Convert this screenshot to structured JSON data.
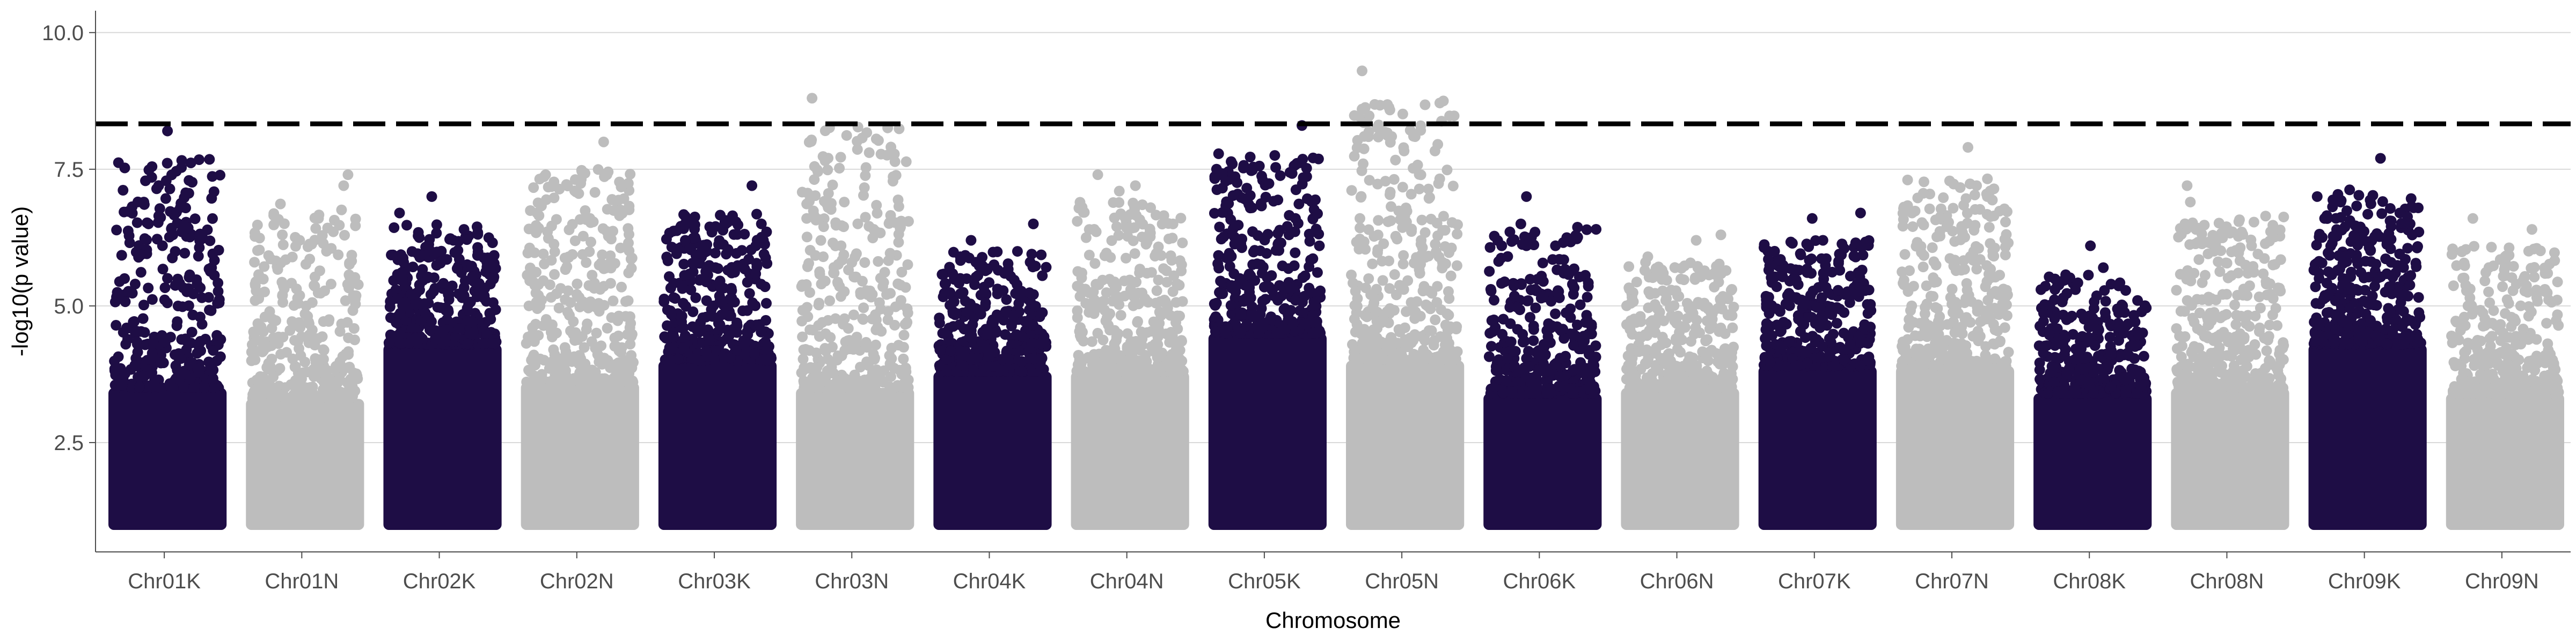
{
  "chart_data": {
    "type": "scatter",
    "subtype": "manhattan",
    "title": "",
    "xlabel": "Chromosome",
    "ylabel": "-log10(p value)",
    "ylim": [
      0.5,
      10.4
    ],
    "yticks": [
      2.5,
      5.0,
      7.5,
      10.0
    ],
    "ytick_labels": [
      "2.5",
      "5.0",
      "7.5",
      "10.0"
    ],
    "grid": "horizontal major lines only",
    "legend": "none",
    "threshold": {
      "y": 8.33,
      "style": "dashed",
      "color": "#000000"
    },
    "colors": {
      "K": "#1e0d45",
      "N": "#bdbdbd"
    },
    "categories": [
      "Chr01K",
      "Chr01N",
      "Chr02K",
      "Chr02N",
      "Chr03K",
      "Chr03N",
      "Chr04K",
      "Chr04N",
      "Chr05K",
      "Chr05N",
      "Chr06K",
      "Chr06N",
      "Chr07K",
      "Chr07N",
      "Chr08K",
      "Chr08N",
      "Chr09K",
      "Chr09N"
    ],
    "series": [
      {
        "chromosome": "Chr01K",
        "color_group": "K",
        "baseline_min": 1.0,
        "dense_top": 3.5,
        "max": 8.2,
        "peaks": [
          {
            "pos": 0.5,
            "y": 8.2
          },
          {
            "pos": 0.28,
            "y": 6.9
          },
          {
            "pos": 0.62,
            "y": 6.8
          },
          {
            "pos": 0.55,
            "y": 6.3
          },
          {
            "pos": 0.1,
            "y": 5.5
          }
        ]
      },
      {
        "chromosome": "Chr01N",
        "color_group": "N",
        "baseline_min": 1.0,
        "dense_top": 3.3,
        "max": 7.4,
        "peaks": [
          {
            "pos": 0.9,
            "y": 7.4
          },
          {
            "pos": 0.86,
            "y": 7.2
          },
          {
            "pos": 0.45,
            "y": 6.2
          },
          {
            "pos": 0.7,
            "y": 6.0
          }
        ]
      },
      {
        "chromosome": "Chr02K",
        "color_group": "K",
        "baseline_min": 1.0,
        "dense_top": 4.3,
        "max": 7.0,
        "peaks": [
          {
            "pos": 0.4,
            "y": 7.0
          },
          {
            "pos": 0.1,
            "y": 6.7
          },
          {
            "pos": 0.7,
            "y": 6.4
          },
          {
            "pos": 0.6,
            "y": 6.2
          }
        ]
      },
      {
        "chromosome": "Chr02N",
        "color_group": "N",
        "baseline_min": 1.0,
        "dense_top": 3.6,
        "max": 8.0,
        "peaks": [
          {
            "pos": 0.72,
            "y": 8.0
          },
          {
            "pos": 0.75,
            "y": 7.4
          },
          {
            "pos": 0.18,
            "y": 7.4
          },
          {
            "pos": 0.1,
            "y": 6.7
          }
        ]
      },
      {
        "chromosome": "Chr03K",
        "color_group": "K",
        "baseline_min": 1.0,
        "dense_top": 4.0,
        "max": 7.2,
        "peaks": [
          {
            "pos": 0.82,
            "y": 7.2
          },
          {
            "pos": 0.2,
            "y": 6.2
          },
          {
            "pos": 0.4,
            "y": 6.0
          }
        ]
      },
      {
        "chromosome": "Chr03N",
        "color_group": "N",
        "baseline_min": 1.0,
        "dense_top": 3.5,
        "max": 8.8,
        "peaks": [
          {
            "pos": 0.1,
            "y": 8.8
          },
          {
            "pos": 0.4,
            "y": 6.9
          },
          {
            "pos": 0.25,
            "y": 6.8
          },
          {
            "pos": 0.05,
            "y": 6.6
          }
        ]
      },
      {
        "chromosome": "Chr04K",
        "color_group": "K",
        "baseline_min": 1.0,
        "dense_top": 3.8,
        "max": 6.5,
        "peaks": [
          {
            "pos": 0.88,
            "y": 6.5
          },
          {
            "pos": 0.3,
            "y": 6.2
          },
          {
            "pos": 0.2,
            "y": 5.9
          },
          {
            "pos": 0.85,
            "y": 5.8
          }
        ]
      },
      {
        "chromosome": "Chr04N",
        "color_group": "N",
        "baseline_min": 1.0,
        "dense_top": 3.8,
        "max": 7.4,
        "peaks": [
          {
            "pos": 0.2,
            "y": 7.4
          },
          {
            "pos": 0.55,
            "y": 7.2
          },
          {
            "pos": 0.4,
            "y": 7.1
          },
          {
            "pos": 0.9,
            "y": 6.5
          }
        ]
      },
      {
        "chromosome": "Chr05K",
        "color_group": "K",
        "baseline_min": 1.0,
        "dense_top": 4.5,
        "max": 8.3,
        "peaks": [
          {
            "pos": 0.82,
            "y": 8.3
          },
          {
            "pos": 0.76,
            "y": 6.6
          },
          {
            "pos": 0.7,
            "y": 6.3
          },
          {
            "pos": 0.45,
            "y": 5.6
          }
        ]
      },
      {
        "chromosome": "Chr05N",
        "color_group": "N",
        "baseline_min": 1.0,
        "dense_top": 4.0,
        "max": 9.3,
        "peaks": [
          {
            "pos": 0.1,
            "y": 9.3
          },
          {
            "pos": 0.1,
            "y": 8.6
          },
          {
            "pos": 0.12,
            "y": 8.1
          },
          {
            "pos": 0.11,
            "y": 7.6
          },
          {
            "pos": 0.08,
            "y": 6.6
          },
          {
            "pos": 0.65,
            "y": 6.2
          }
        ]
      },
      {
        "chromosome": "Chr06K",
        "color_group": "K",
        "baseline_min": 1.0,
        "dense_top": 3.4,
        "max": 7.0,
        "peaks": [
          {
            "pos": 0.35,
            "y": 7.0
          },
          {
            "pos": 0.12,
            "y": 6.1
          },
          {
            "pos": 0.35,
            "y": 6.1
          },
          {
            "pos": 0.62,
            "y": 6.1
          }
        ]
      },
      {
        "chromosome": "Chr06N",
        "color_group": "N",
        "baseline_min": 1.0,
        "dense_top": 3.5,
        "max": 6.3,
        "peaks": [
          {
            "pos": 0.88,
            "y": 6.3
          },
          {
            "pos": 0.2,
            "y": 5.9
          },
          {
            "pos": 0.65,
            "y": 6.2
          }
        ]
      },
      {
        "chromosome": "Chr07K",
        "color_group": "K",
        "baseline_min": 1.0,
        "dense_top": 3.9,
        "max": 6.7,
        "peaks": [
          {
            "pos": 0.9,
            "y": 6.7
          },
          {
            "pos": 0.45,
            "y": 6.6
          },
          {
            "pos": 0.1,
            "y": 6.0
          },
          {
            "pos": 0.55,
            "y": 6.2
          }
        ]
      },
      {
        "chromosome": "Chr07N",
        "color_group": "N",
        "baseline_min": 1.0,
        "dense_top": 3.9,
        "max": 7.9,
        "peaks": [
          {
            "pos": 0.62,
            "y": 7.9
          },
          {
            "pos": 0.7,
            "y": 7.2
          },
          {
            "pos": 0.8,
            "y": 7.0
          },
          {
            "pos": 0.1,
            "y": 6.7
          }
        ]
      },
      {
        "chromosome": "Chr08K",
        "color_group": "K",
        "baseline_min": 1.0,
        "dense_top": 3.4,
        "max": 6.1,
        "peaks": [
          {
            "pos": 0.48,
            "y": 6.1
          },
          {
            "pos": 0.15,
            "y": 5.3
          },
          {
            "pos": 0.6,
            "y": 5.7
          }
        ]
      },
      {
        "chromosome": "Chr08N",
        "color_group": "N",
        "baseline_min": 1.0,
        "dense_top": 3.5,
        "max": 7.2,
        "peaks": [
          {
            "pos": 0.1,
            "y": 7.2
          },
          {
            "pos": 0.13,
            "y": 6.9
          },
          {
            "pos": 0.7,
            "y": 6.1
          },
          {
            "pos": 0.35,
            "y": 6.0
          }
        ]
      },
      {
        "chromosome": "Chr09K",
        "color_group": "K",
        "baseline_min": 1.0,
        "dense_top": 4.3,
        "max": 7.7,
        "peaks": [
          {
            "pos": 0.62,
            "y": 7.7
          },
          {
            "pos": 0.25,
            "y": 6.9
          },
          {
            "pos": 0.8,
            "y": 6.7
          },
          {
            "pos": 0.1,
            "y": 6.6
          }
        ]
      },
      {
        "chromosome": "Chr09N",
        "color_group": "N",
        "baseline_min": 1.0,
        "dense_top": 3.4,
        "max": 6.6,
        "peaks": [
          {
            "pos": 0.2,
            "y": 6.6
          },
          {
            "pos": 0.75,
            "y": 6.4
          },
          {
            "pos": 0.5,
            "y": 5.9
          },
          {
            "pos": 0.1,
            "y": 6.0
          }
        ]
      }
    ]
  }
}
